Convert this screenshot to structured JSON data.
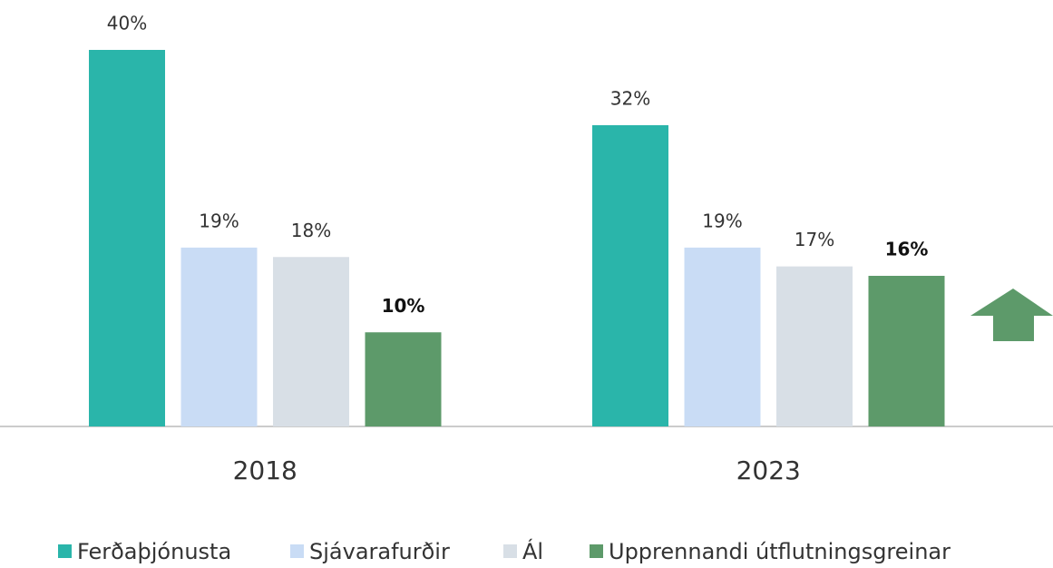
{
  "chart_data": {
    "type": "bar",
    "categories": [
      "2018",
      "2023"
    ],
    "series": [
      {
        "name": "Ferðaþjónusta",
        "color": "#2ab5aa",
        "values": [
          40,
          32
        ],
        "value_labels": [
          "40%",
          "32%"
        ]
      },
      {
        "name": "Sjávarafurðir",
        "color": "#c9dcf5",
        "values": [
          19,
          19
        ],
        "value_labels": [
          "19%",
          "19%"
        ]
      },
      {
        "name": "Ál",
        "color": "#d8dfe6",
        "values": [
          18,
          17
        ],
        "value_labels": [
          "18%",
          "17%"
        ]
      },
      {
        "name": "Upprennandi útflutningsgreinar",
        "color": "#5d9a6a",
        "values": [
          10,
          16
        ],
        "value_labels": [
          "10%",
          "16%"
        ]
      }
    ]
  }
}
